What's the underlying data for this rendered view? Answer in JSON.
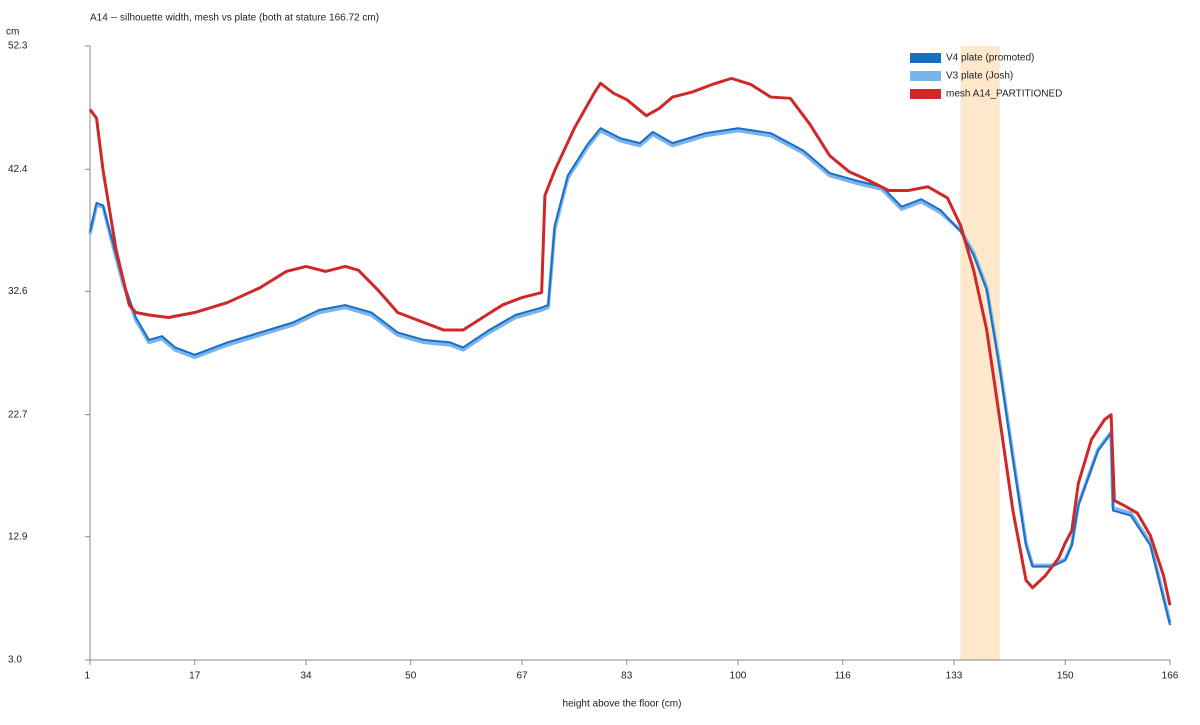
{
  "chart_data": {
    "type": "line",
    "title": "A14 -- silhouette width, mesh vs plate (both at stature 166.72 cm)",
    "x_label": "height above the floor (cm)",
    "y_label": "cm",
    "xlim": [
      1,
      166
    ],
    "xticks": [
      1,
      17,
      34,
      50,
      67,
      83,
      100,
      116,
      133,
      150,
      166
    ],
    "ylim": [
      3,
      52.3
    ],
    "yticks": [
      {
        "value": 3,
        "label": "3.0"
      },
      12.9,
      22.7,
      32.6,
      42.4,
      52.3
    ],
    "highlight": [
      134,
      140
    ],
    "legend": "top-right",
    "series": [
      {
        "name": "V4 plate (promoted)",
        "color": "#1a6fc4",
        "x": [
          1,
          2,
          3,
          4,
          6,
          8,
          10,
          12,
          14,
          17,
          22,
          27,
          32,
          36,
          40,
          44,
          48,
          52,
          56,
          58,
          62,
          66,
          70,
          71,
          72,
          74,
          77,
          79,
          82,
          85,
          87,
          90,
          95,
          100,
          105,
          110,
          114,
          118,
          122,
          125,
          128,
          131,
          134,
          136,
          138,
          140,
          142,
          144,
          145,
          148,
          150,
          151,
          152,
          155,
          157,
          157.3,
          160,
          163,
          166
        ],
        "values": [
          37.4,
          39.7,
          39.5,
          37.5,
          33.5,
          30.5,
          28.7,
          29.0,
          28.1,
          27.5,
          28.5,
          29.3,
          30.1,
          31.1,
          31.5,
          30.9,
          29.3,
          28.7,
          28.5,
          28.1,
          29.5,
          30.7,
          31.3,
          31.5,
          37.9,
          41.9,
          44.4,
          45.7,
          44.9,
          44.5,
          45.4,
          44.5,
          45.3,
          45.7,
          45.3,
          43.9,
          42.1,
          41.5,
          41.0,
          39.4,
          40.0,
          39.1,
          37.4,
          35.5,
          32.7,
          26.3,
          19.1,
          12.2,
          10.5,
          10.5,
          11.0,
          12.2,
          15.4,
          19.8,
          21.2,
          15.0,
          14.6,
          12.2,
          5.8
        ]
      },
      {
        "name": "V3 plate (Josh)",
        "color": "#7ab4ec",
        "x": [
          1,
          2,
          3,
          4,
          6,
          8,
          10,
          12,
          14,
          17,
          22,
          27,
          32,
          36,
          40,
          44,
          48,
          52,
          56,
          58,
          62,
          66,
          70,
          71,
          72,
          74,
          77,
          79,
          82,
          85,
          87,
          90,
          95,
          100,
          105,
          110,
          114,
          118,
          122,
          125,
          128,
          131,
          134,
          136,
          138,
          140,
          142,
          144,
          145,
          148,
          150,
          151,
          152,
          155,
          157,
          157.3,
          160,
          163,
          166
        ],
        "values": [
          37.2,
          39.5,
          39.4,
          37.3,
          33.3,
          30.3,
          28.5,
          28.8,
          27.9,
          27.3,
          28.3,
          29.1,
          29.9,
          30.9,
          31.3,
          30.7,
          29.1,
          28.5,
          28.3,
          27.9,
          29.3,
          30.5,
          31.1,
          31.3,
          37.6,
          41.7,
          44.2,
          45.5,
          44.7,
          44.3,
          45.2,
          44.3,
          45.1,
          45.5,
          45.1,
          43.7,
          41.9,
          41.3,
          40.8,
          39.2,
          39.8,
          38.9,
          37.5,
          35.7,
          32.9,
          26.6,
          19.4,
          12.4,
          10.6,
          10.6,
          11.1,
          12.3,
          15.5,
          19.9,
          21.3,
          15.2,
          14.8,
          12.4,
          6.0
        ]
      },
      {
        "name": "mesh A14_PARTITIONED",
        "color": "#d02828",
        "x": [
          1,
          2,
          3,
          5,
          7,
          8,
          10,
          13,
          17,
          22,
          27,
          31,
          34,
          37,
          40,
          42,
          45,
          48,
          52,
          55,
          58,
          61,
          64,
          67,
          70,
          70.5,
          72,
          75,
          78,
          79,
          81,
          83,
          86,
          88,
          90,
          93,
          96,
          99,
          102,
          105,
          108,
          111,
          114,
          117,
          120,
          123,
          126,
          129,
          132,
          134,
          136,
          138,
          140,
          142,
          144,
          145,
          147,
          149,
          150,
          151,
          152,
          154,
          156,
          157,
          157.5,
          159,
          161,
          163,
          165,
          166
        ],
        "values": [
          47.2,
          46.5,
          42.3,
          35.9,
          31.5,
          30.9,
          30.7,
          30.5,
          30.9,
          31.7,
          32.9,
          34.2,
          34.6,
          34.2,
          34.6,
          34.3,
          32.7,
          30.9,
          30.1,
          29.5,
          29.5,
          30.5,
          31.5,
          32.1,
          32.5,
          40.3,
          42.3,
          45.7,
          48.5,
          49.3,
          48.5,
          48.0,
          46.7,
          47.3,
          48.2,
          48.6,
          49.2,
          49.7,
          49.2,
          48.2,
          48.1,
          46.0,
          43.5,
          42.2,
          41.5,
          40.7,
          40.7,
          41.0,
          40.1,
          37.9,
          34.3,
          29.5,
          22.3,
          15.0,
          9.4,
          8.8,
          9.8,
          11.2,
          12.4,
          13.4,
          17.2,
          20.7,
          22.3,
          22.7,
          15.8,
          15.4,
          14.8,
          13.0,
          9.8,
          7.4
        ]
      }
    ]
  }
}
